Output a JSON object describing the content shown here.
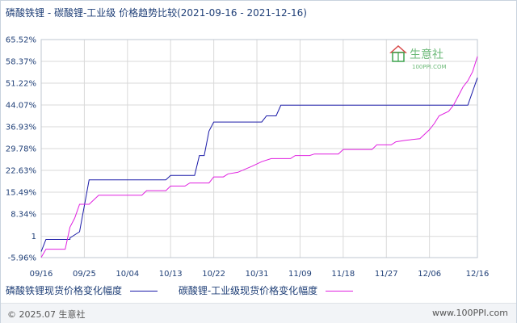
{
  "title": "磷酸铁锂 - 碳酸锂-工业级 价格趋势比较(2021-09-16 - 2021-12-16)",
  "colors": {
    "series_1": "#1a1aa8",
    "series_2": "#e020e0",
    "grid": "#d9d9d9",
    "axis_text": "#1f3f77",
    "watermark_green": "#3da34d",
    "watermark_red": "#d84a4a"
  },
  "watermark": {
    "brand": "生意社",
    "url": "100PPI.COM",
    "icon": "house-logo-icon"
  },
  "footer": {
    "copyright": "© 2025.07 生意社",
    "site": "www.100PPI.com"
  },
  "chart_data": {
    "type": "line",
    "title": "磷酸铁锂 - 碳酸锂-工业级 价格趋势比较(2021-09-16 - 2021-12-16)",
    "ylim": [
      -5.96,
      65.52
    ],
    "y_ticks": [
      -5.96,
      1,
      8.34,
      15.49,
      22.63,
      29.78,
      36.93,
      44.07,
      51.22,
      58.37,
      65.52
    ],
    "y_tick_labels": [
      "-5.96%",
      "1",
      "8.34%",
      "15.49%",
      "22.63%",
      "29.78%",
      "36.93%",
      "44.07%",
      "51.22%",
      "58.37%",
      "65.52%"
    ],
    "x_range": [
      "2021-09-16",
      "2021-12-16"
    ],
    "x_ticks": [
      "2021-09-16",
      "2021-09-25",
      "2021-10-04",
      "2021-10-13",
      "2021-10-22",
      "2021-10-31",
      "2021-11-09",
      "2021-11-18",
      "2021-11-27",
      "2021-12-06",
      "2021-12-16"
    ],
    "x_tick_labels": [
      "09/16",
      "09/25",
      "10/04",
      "10/13",
      "10/22",
      "10/31",
      "11/09",
      "11/18",
      "11/27",
      "12/06",
      "12/16"
    ],
    "grid": true,
    "legend_position": "bottom",
    "series": [
      {
        "name": "磷酸铁锂现货价格变化幅度",
        "color": "#1a1aa8",
        "points": [
          [
            "2021-09-16",
            -4.0
          ],
          [
            "2021-09-17",
            0.0
          ],
          [
            "2021-09-22",
            0.0
          ],
          [
            "2021-09-22",
            0.5
          ],
          [
            "2021-09-24",
            2.5
          ],
          [
            "2021-09-26",
            19.5
          ],
          [
            "2021-10-12",
            19.5
          ],
          [
            "2021-10-13",
            21.0
          ],
          [
            "2021-10-18",
            21.0
          ],
          [
            "2021-10-19",
            27.5
          ],
          [
            "2021-10-20",
            27.5
          ],
          [
            "2021-10-21",
            35.5
          ],
          [
            "2021-10-22",
            38.5
          ],
          [
            "2021-11-01",
            38.5
          ],
          [
            "2021-11-02",
            40.5
          ],
          [
            "2021-11-04",
            40.5
          ],
          [
            "2021-11-05",
            44.0
          ],
          [
            "2021-12-13",
            44.0
          ],
          [
            "2021-12-14",
            44.0
          ],
          [
            "2021-12-16",
            53.0
          ]
        ]
      },
      {
        "name": "碳酸锂-工业级现货价格变化幅度",
        "color": "#e020e0",
        "points": [
          [
            "2021-09-16",
            -5.9
          ],
          [
            "2021-09-17",
            -3.2
          ],
          [
            "2021-09-21",
            -3.2
          ],
          [
            "2021-09-22",
            4.0
          ],
          [
            "2021-09-23",
            7.0
          ],
          [
            "2021-09-24",
            11.5
          ],
          [
            "2021-09-26",
            11.5
          ],
          [
            "2021-09-28",
            14.5
          ],
          [
            "2021-10-07",
            14.5
          ],
          [
            "2021-10-08",
            16.0
          ],
          [
            "2021-10-12",
            16.0
          ],
          [
            "2021-10-13",
            17.5
          ],
          [
            "2021-10-16",
            17.5
          ],
          [
            "2021-10-17",
            18.5
          ],
          [
            "2021-10-21",
            18.5
          ],
          [
            "2021-10-22",
            20.5
          ],
          [
            "2021-10-24",
            20.5
          ],
          [
            "2021-10-25",
            21.5
          ],
          [
            "2021-10-27",
            22.0
          ],
          [
            "2021-10-30",
            24.0
          ],
          [
            "2021-11-01",
            25.5
          ],
          [
            "2021-11-03",
            26.5
          ],
          [
            "2021-11-07",
            26.5
          ],
          [
            "2021-11-08",
            27.5
          ],
          [
            "2021-11-11",
            27.5
          ],
          [
            "2021-11-12",
            28.0
          ],
          [
            "2021-11-17",
            28.0
          ],
          [
            "2021-11-18",
            29.5
          ],
          [
            "2021-11-24",
            29.5
          ],
          [
            "2021-11-25",
            31.0
          ],
          [
            "2021-11-28",
            31.0
          ],
          [
            "2021-11-29",
            32.0
          ],
          [
            "2021-12-01",
            32.5
          ],
          [
            "2021-12-04",
            33.0
          ],
          [
            "2021-12-06",
            36.0
          ],
          [
            "2021-12-07",
            38.0
          ],
          [
            "2021-12-08",
            40.5
          ],
          [
            "2021-12-10",
            42.0
          ],
          [
            "2021-12-11",
            44.0
          ],
          [
            "2021-12-12",
            47.0
          ],
          [
            "2021-12-13",
            50.0
          ],
          [
            "2021-12-14",
            52.0
          ],
          [
            "2021-12-15",
            55.0
          ],
          [
            "2021-12-16",
            60.0
          ]
        ]
      }
    ]
  }
}
